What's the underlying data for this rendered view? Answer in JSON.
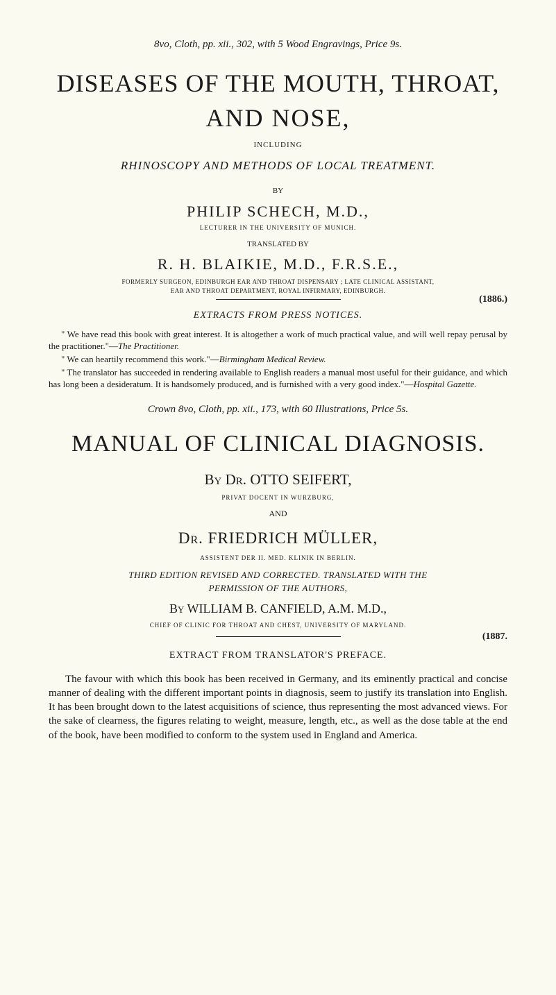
{
  "book1": {
    "format_line": "8vo, Cloth, pp. xii., 302, with 5 Wood Engravings, Price 9s.",
    "title_line1": "DISEASES OF THE MOUTH, THROAT,",
    "title_line2": "AND NOSE,",
    "including": "INCLUDING",
    "subtitle": "RHINOSCOPY AND METHODS OF LOCAL TREATMENT.",
    "by": "BY",
    "author": "PHILIP SCHECH, M.D.,",
    "author_cred": "LECTURER IN THE UNIVERSITY OF MUNICH.",
    "translated_by": "TRANSLATED BY",
    "translator": "R. H. BLAIKIE, M.D., F.R.S.E.,",
    "translator_cred1": "FORMERLY SURGEON, EDINBURGH EAR AND THROAT DISPENSARY ; LATE CLINICAL ASSISTANT,",
    "translator_cred2": "EAR AND THROAT DEPARTMENT, ROYAL INFIRMARY, EDINBURGH.",
    "year": "(1886.)",
    "extracts_head": "EXTRACTS FROM PRESS NOTICES.",
    "review1_text": "\" We have read this book with great interest. It is altogether a work of much practical value, and will well repay perusal by the practitioner.\"—",
    "review1_src": "The Practitioner.",
    "review2_text": "\" We can heartily recommend this work.\"—",
    "review2_src": "Birmingham Medical Review.",
    "review3_text": "\" The translator has succeeded in rendering available to English readers a manual most useful for their guidance, and which has long been a desideratum. It is handsomely produced, and is furnished with a very good index.\"—",
    "review3_src": "Hospital Gazette."
  },
  "book2": {
    "format_line": "Crown 8vo, Cloth, pp. xii., 173, with 60 Illustrations, Price 5s.",
    "title": "MANUAL OF CLINICAL DIAGNOSIS.",
    "by_author": "By Dr. OTTO SEIFERT,",
    "author_cred": "PRIVAT DOCENT IN WURZBURG,",
    "and": "AND",
    "author2": "Dr. FRIEDRICH MÜLLER,",
    "author2_cred": "ASSISTENT DER II. MED. KLINIK IN BERLIN.",
    "edition_line1": "THIRD EDITION REVISED AND CORRECTED. TRANSLATED WITH THE",
    "edition_line2": "PERMISSION OF THE AUTHORS,",
    "by_translator": "By WILLIAM B. CANFIELD, A.M. M.D.,",
    "translator_cred": "CHIEF OF CLINIC FOR THROAT AND CHEST, UNIVERSITY OF MARYLAND.",
    "year": "(1887.",
    "preface_head": "EXTRACT FROM TRANSLATOR'S PREFACE.",
    "preface_text": "The favour with which this book has been received in Germany, and its eminently practical and concise manner of dealing with the different important points in diagnosis, seem to justify its translation into English. It has been brought down to the latest acquisitions of science, thus representing the most advanced views. For the sake of clearness, the figures relating to weight, measure, length, etc., as well as the dose table at the end of the book, have been modified to conform to the system used in England and America."
  },
  "colors": {
    "background": "#fafaf0",
    "text": "#1a1a1a"
  }
}
